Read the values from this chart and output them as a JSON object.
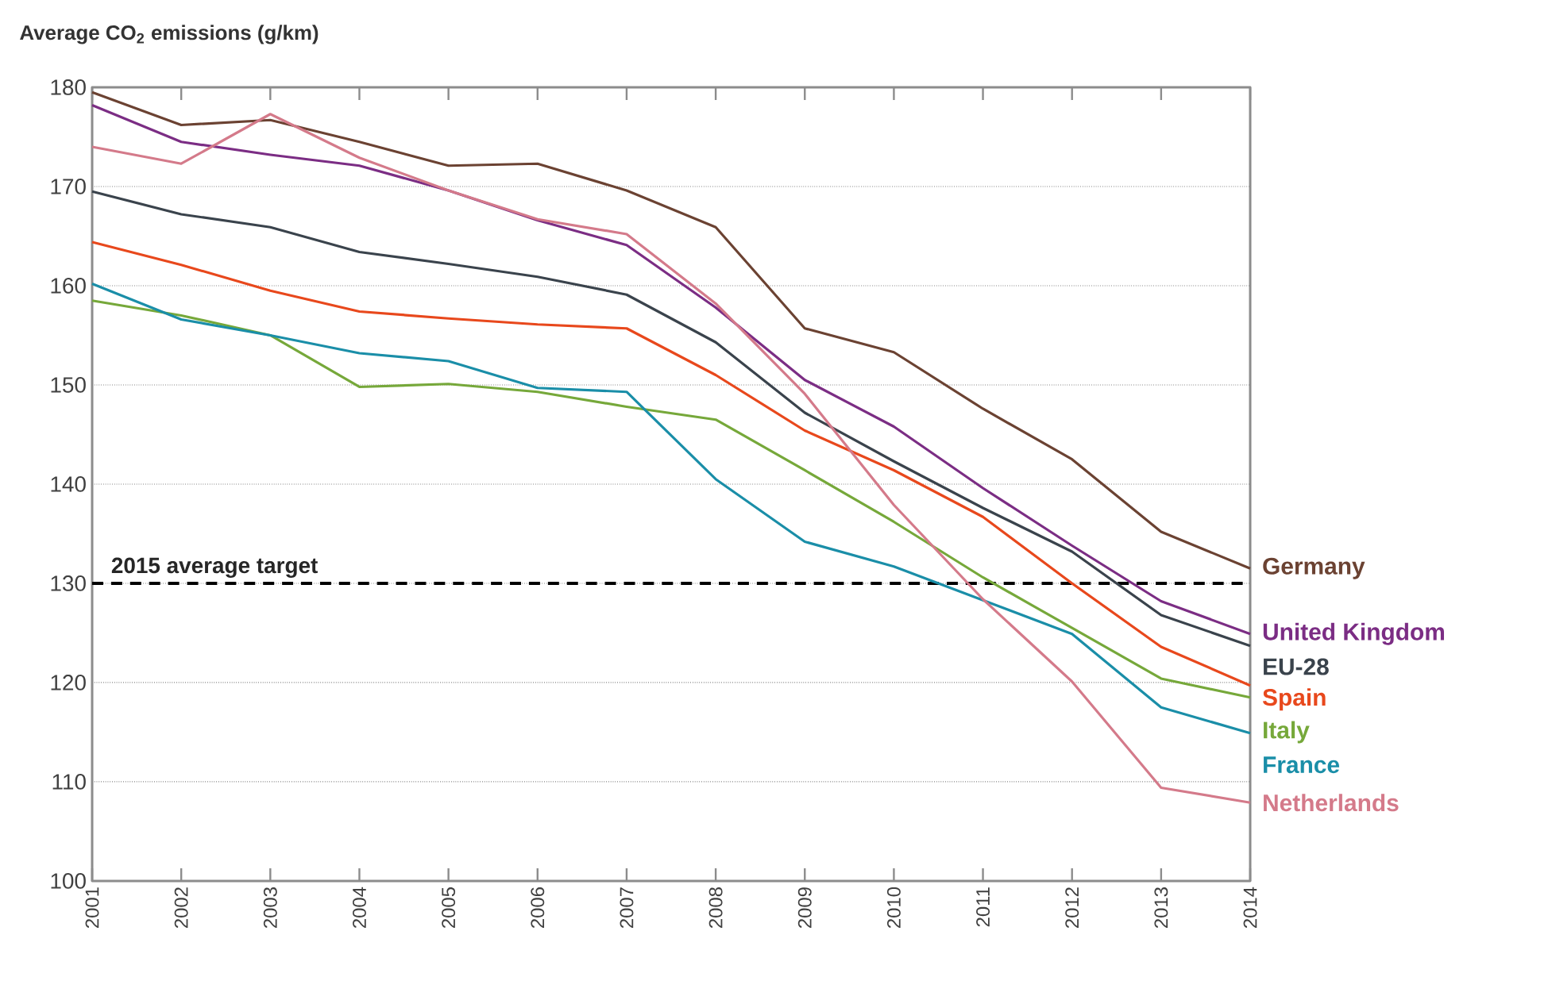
{
  "chart_data": {
    "type": "line",
    "ylabel": "Average CO$_{2}$ emissions (g/km)",
    "categories": [
      "2001",
      "2002",
      "2003",
      "2004",
      "2005",
      "2006",
      "2007",
      "2008",
      "2009",
      "2010",
      "2011",
      "2012",
      "2013",
      "2014"
    ],
    "series": [
      {
        "name": "Germany",
        "color": "#6b4232",
        "values": [
          179.5,
          176.2,
          176.7,
          174.5,
          172.1,
          172.3,
          169.6,
          165.9,
          155.7,
          153.3,
          147.6,
          142.5,
          135.2,
          131.5
        ]
      },
      {
        "name": "United Kingdom",
        "color": "#7b2d84",
        "values": [
          178.2,
          174.5,
          173.2,
          172.1,
          169.6,
          166.6,
          164.1,
          157.8,
          150.5,
          145.8,
          139.6,
          133.8,
          128.2,
          124.9
        ]
      },
      {
        "name": "EU-28",
        "color": "#3a434c",
        "values": [
          169.5,
          167.2,
          165.9,
          163.4,
          162.2,
          160.9,
          159.1,
          154.3,
          147.2,
          142.3,
          137.6,
          133.2,
          126.8,
          123.7
        ]
      },
      {
        "name": "Spain",
        "color": "#e8481c",
        "values": [
          164.4,
          162.1,
          159.5,
          157.4,
          156.7,
          156.1,
          155.7,
          151.0,
          145.4,
          141.4,
          136.7,
          130.0,
          123.6,
          119.7
        ]
      },
      {
        "name": "Italy",
        "color": "#76a83a",
        "values": [
          158.5,
          157.0,
          155.0,
          149.8,
          150.1,
          149.3,
          147.8,
          146.5,
          141.4,
          136.2,
          130.6,
          125.5,
          120.4,
          118.5
        ]
      },
      {
        "name": "France",
        "color": "#1a8ea8",
        "values": [
          160.2,
          156.6,
          155.0,
          153.2,
          152.4,
          149.7,
          149.3,
          140.5,
          134.2,
          131.7,
          128.3,
          124.9,
          117.5,
          114.9
        ]
      },
      {
        "name": "Netherlands",
        "color": "#d47a8a",
        "values": [
          174.0,
          172.3,
          177.3,
          172.9,
          169.6,
          166.7,
          165.2,
          158.2,
          149.1,
          137.9,
          128.4,
          120.1,
          109.4,
          107.9
        ]
      }
    ],
    "ylim": [
      100,
      180
    ],
    "yticks": [
      100,
      110,
      120,
      130,
      140,
      150,
      160,
      170,
      180
    ],
    "grid": "y",
    "legend": false,
    "marker": "none",
    "line_style": "solid",
    "ref_lines": [
      {
        "axis": "y",
        "value": 130,
        "label": "2015 average target",
        "color": "#000000",
        "line_style": "dashed"
      }
    ]
  }
}
